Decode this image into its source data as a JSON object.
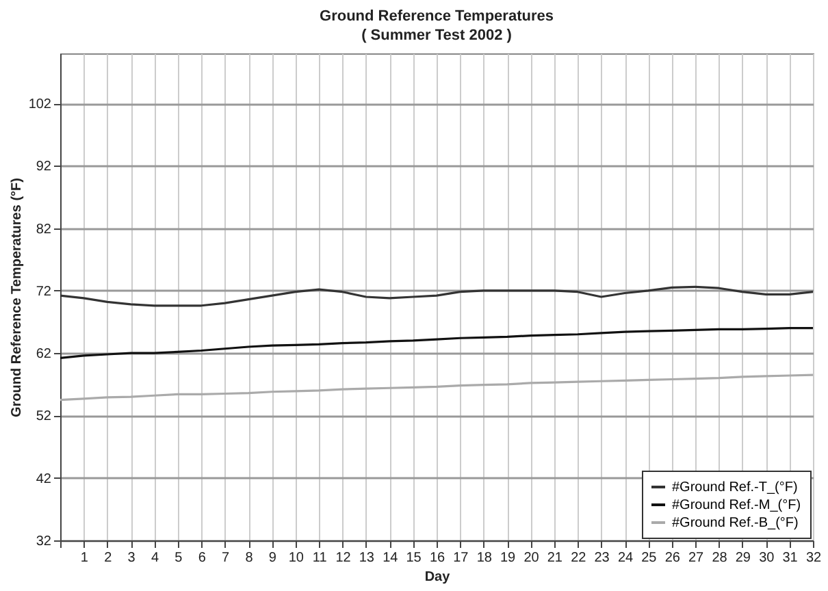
{
  "chart_data": {
    "type": "line",
    "title": "Ground Reference Temperatures",
    "subtitle": "( Summer Test 2002 )",
    "xlabel": "Day",
    "ylabel": "Ground Reference Temperatures (°F)",
    "x": [
      0,
      1,
      2,
      3,
      4,
      5,
      6,
      7,
      8,
      9,
      10,
      11,
      12,
      13,
      14,
      15,
      16,
      17,
      18,
      19,
      20,
      21,
      22,
      23,
      24,
      25,
      26,
      27,
      28,
      29,
      30,
      31,
      32
    ],
    "series": [
      {
        "name": "#Ground Ref.-T_(°F)",
        "color": "#333333",
        "values": [
          71.2,
          70.8,
          70.2,
          69.8,
          69.6,
          69.6,
          69.6,
          70.0,
          70.6,
          71.2,
          71.8,
          72.2,
          71.8,
          71.0,
          70.8,
          71.0,
          71.2,
          71.8,
          72.0,
          72.0,
          72.0,
          72.0,
          71.8,
          71.0,
          71.6,
          72.0,
          72.5,
          72.6,
          72.4,
          71.8,
          71.4,
          71.4,
          71.8
        ]
      },
      {
        "name": "#Ground Ref.-M_(°F)",
        "color": "#111111",
        "values": [
          61.2,
          61.6,
          61.8,
          62.0,
          62.0,
          62.2,
          62.4,
          62.7,
          63.0,
          63.2,
          63.3,
          63.4,
          63.6,
          63.7,
          63.9,
          64.0,
          64.2,
          64.4,
          64.5,
          64.6,
          64.8,
          64.9,
          65.0,
          65.2,
          65.4,
          65.5,
          65.6,
          65.7,
          65.8,
          65.8,
          65.9,
          66.0,
          66.0
        ]
      },
      {
        "name": "#Ground Ref.-B_(°F)",
        "color": "#aaaaaa",
        "values": [
          54.5,
          54.7,
          54.9,
          55.0,
          55.2,
          55.4,
          55.4,
          55.5,
          55.6,
          55.8,
          55.9,
          56.0,
          56.2,
          56.3,
          56.4,
          56.5,
          56.6,
          56.8,
          56.9,
          57.0,
          57.2,
          57.3,
          57.4,
          57.5,
          57.6,
          57.7,
          57.8,
          57.9,
          58.0,
          58.2,
          58.3,
          58.4,
          58.5
        ]
      }
    ],
    "xlim": [
      0,
      32
    ],
    "xticks": [
      {
        "value": 0,
        "label": null
      },
      1,
      2,
      3,
      4,
      5,
      6,
      7,
      8,
      9,
      10,
      11,
      12,
      13,
      14,
      15,
      16,
      17,
      18,
      19,
      20,
      21,
      22,
      23,
      24,
      25,
      26,
      27,
      28,
      29,
      30,
      31,
      32
    ],
    "ylim": [
      32,
      110
    ],
    "yticks": [
      32,
      42,
      52,
      62,
      72,
      82,
      92,
      102
    ],
    "grid": true,
    "legend": "bottom right",
    "marker": "none",
    "line_style": "solid"
  }
}
